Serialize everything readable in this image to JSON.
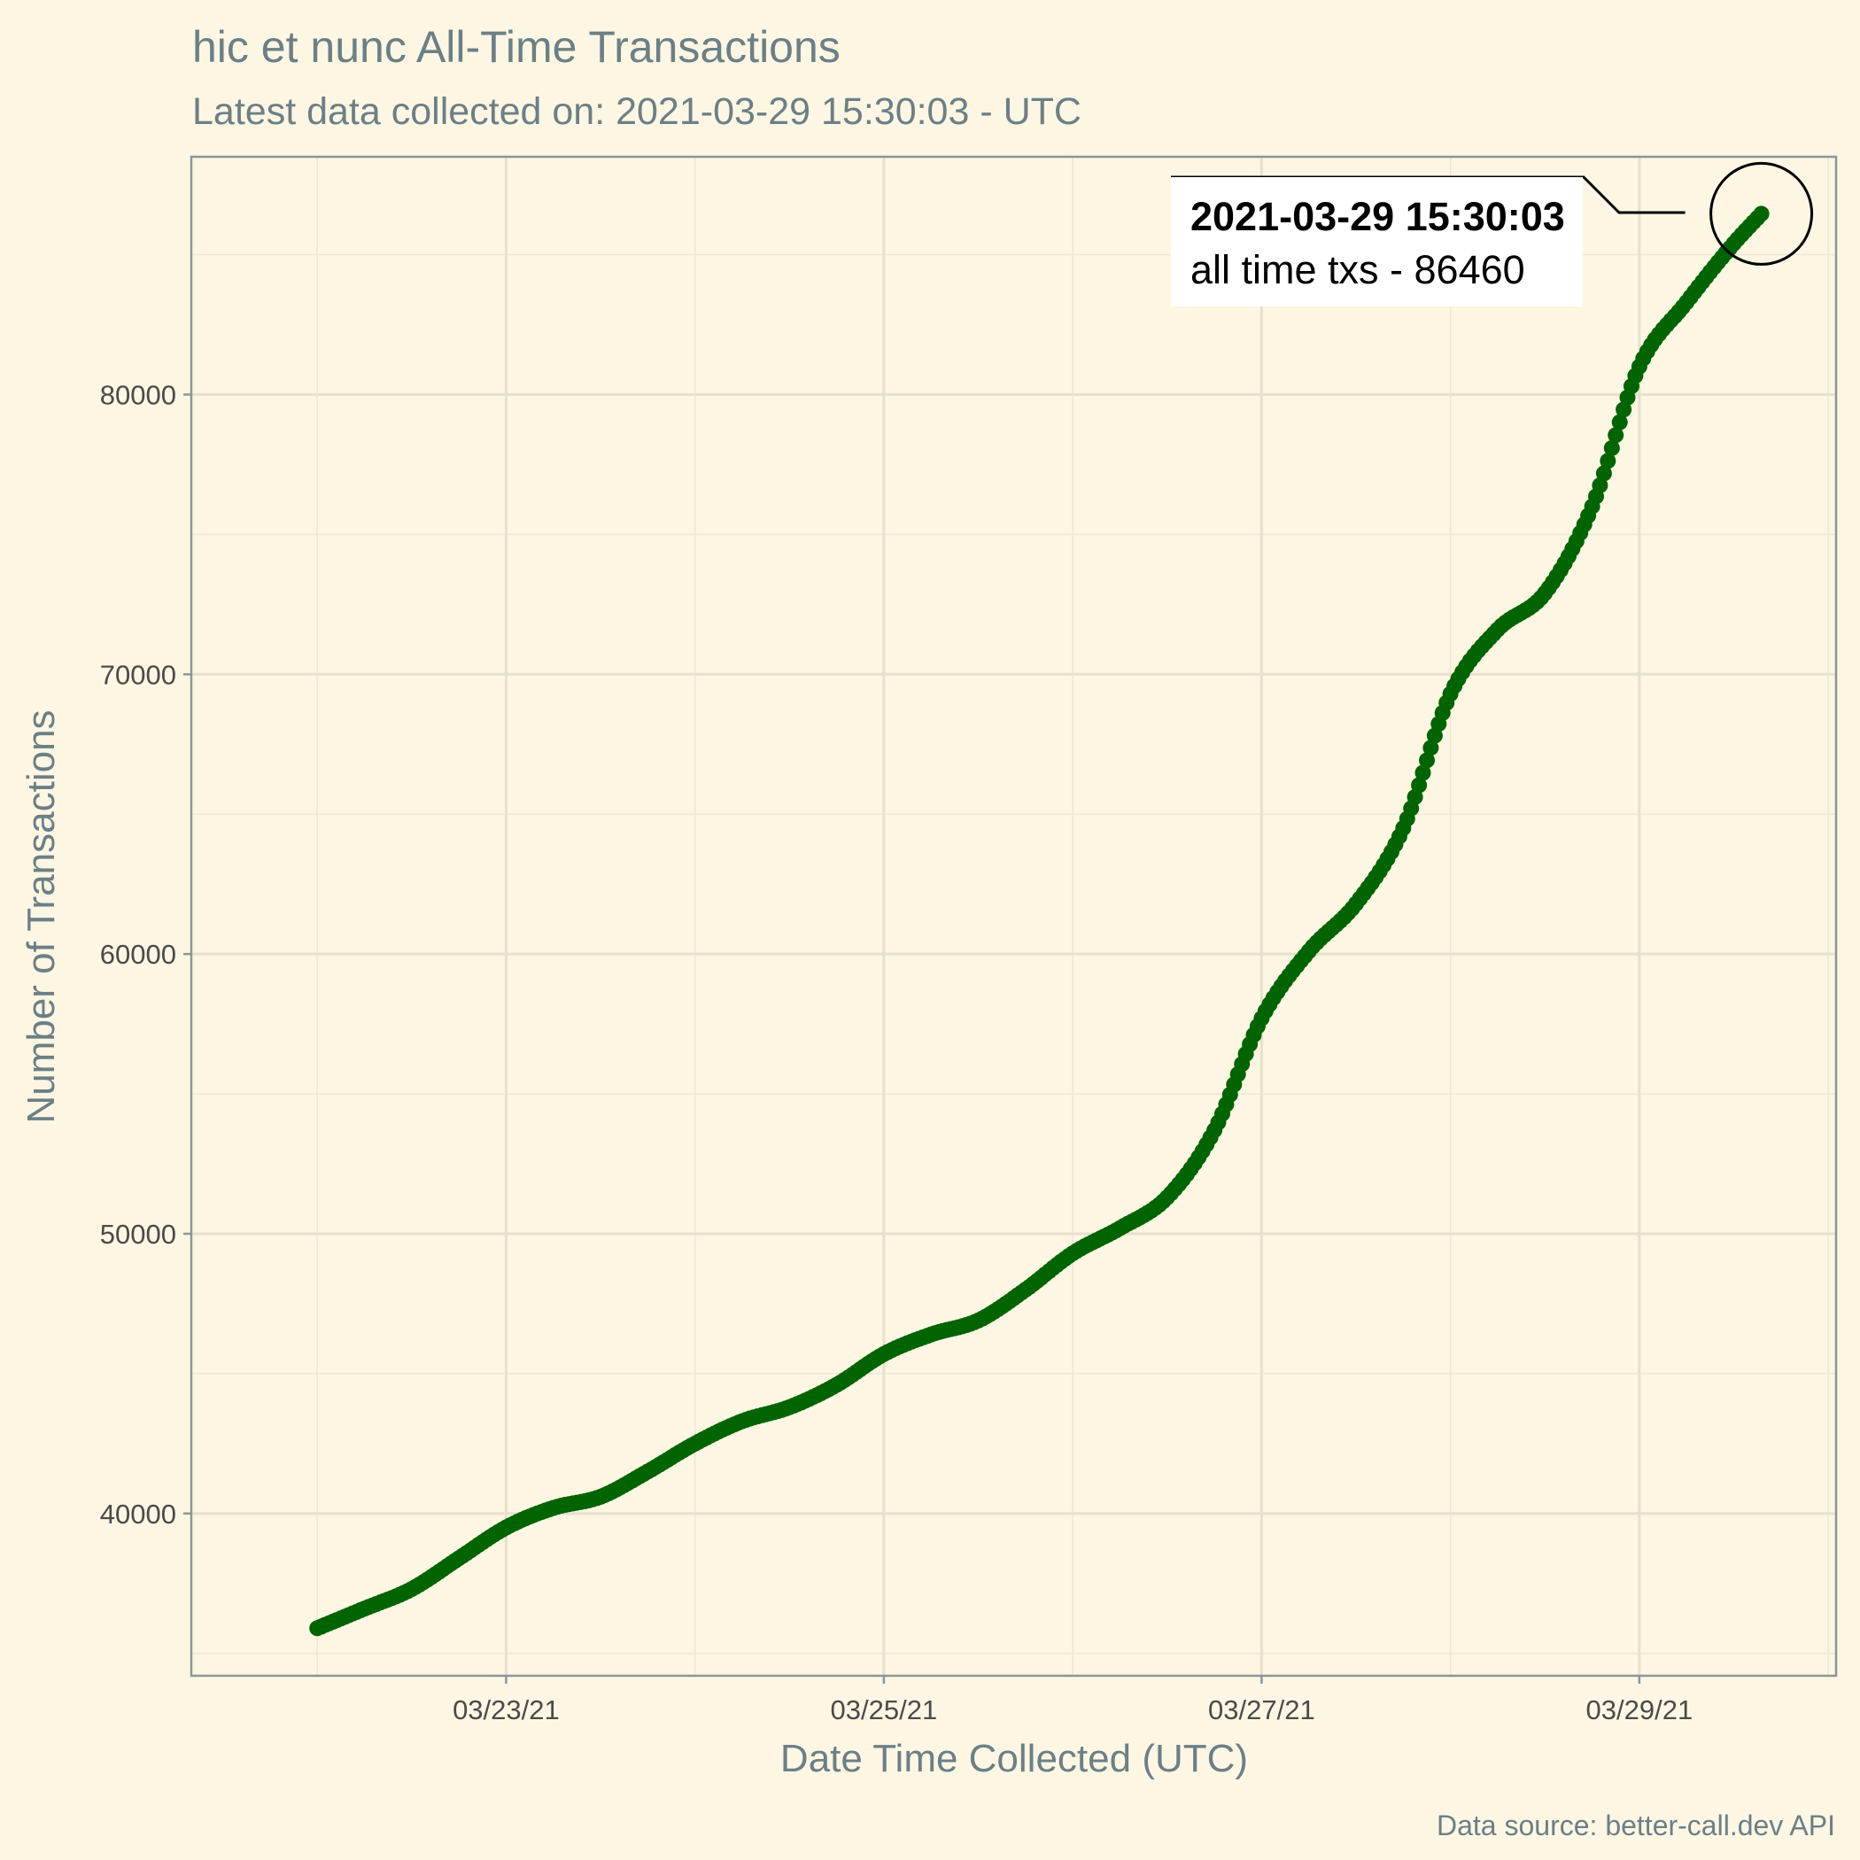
{
  "chart_data": {
    "type": "line",
    "title": "hic et nunc All-Time Transactions",
    "subtitle": "Latest data collected on: 2021-03-29 15:30:03  - UTC",
    "xlabel": "Date Time Collected (UTC)",
    "ylabel": "Number of Transactions",
    "caption": "Data source: better-call.dev API",
    "x_is_datetime": true,
    "xlim": [
      "2021-03-21 08:00",
      "2021-03-30 01:00"
    ],
    "ylim": [
      34200,
      88500
    ],
    "x_ticks": [
      {
        "value": "2021-03-23 00:00",
        "label": "03/23/21"
      },
      {
        "value": "2021-03-25 00:00",
        "label": "03/25/21"
      },
      {
        "value": "2021-03-27 00:00",
        "label": "03/27/21"
      },
      {
        "value": "2021-03-29 00:00",
        "label": "03/29/21"
      }
    ],
    "y_ticks": [
      {
        "value": 40000,
        "label": "40000"
      },
      {
        "value": 50000,
        "label": "50000"
      },
      {
        "value": 60000,
        "label": "60000"
      },
      {
        "value": 70000,
        "label": "70000"
      },
      {
        "value": 80000,
        "label": "80000"
      }
    ],
    "series": [
      {
        "color": "#006400",
        "line_color": "#000000",
        "points": [
          [
            "2021-03-22 00:00",
            35900
          ],
          [
            "2021-03-22 06:00",
            36600
          ],
          [
            "2021-03-22 12:00",
            37300
          ],
          [
            "2021-03-22 18:00",
            38400
          ],
          [
            "2021-03-23 00:00",
            39500
          ],
          [
            "2021-03-23 06:00",
            40200
          ],
          [
            "2021-03-23 12:00",
            40600
          ],
          [
            "2021-03-23 18:00",
            41500
          ],
          [
            "2021-03-24 00:00",
            42500
          ],
          [
            "2021-03-24 06:00",
            43300
          ],
          [
            "2021-03-24 12:00",
            43800
          ],
          [
            "2021-03-24 18:00",
            44600
          ],
          [
            "2021-03-25 00:00",
            45700
          ],
          [
            "2021-03-25 06:00",
            46400
          ],
          [
            "2021-03-25 12:00",
            46900
          ],
          [
            "2021-03-25 18:00",
            48000
          ],
          [
            "2021-03-26 00:00",
            49300
          ],
          [
            "2021-03-26 06:00",
            50200
          ],
          [
            "2021-03-26 12:00",
            51300
          ],
          [
            "2021-03-26 18:00",
            53700
          ],
          [
            "2021-03-27 00:00",
            57700
          ],
          [
            "2021-03-27 06:00",
            60100
          ],
          [
            "2021-03-27 12:00",
            61800
          ],
          [
            "2021-03-27 18:00",
            64500
          ],
          [
            "2021-03-28 00:00",
            69300
          ],
          [
            "2021-03-28 06:00",
            71600
          ],
          [
            "2021-03-28 12:00",
            72900
          ],
          [
            "2021-03-28 18:00",
            76000
          ],
          [
            "2021-03-29 00:00",
            81000
          ],
          [
            "2021-03-29 06:00",
            83300
          ],
          [
            "2021-03-29 12:00",
            85400
          ],
          [
            "2021-03-29 15:30",
            86460
          ]
        ]
      }
    ],
    "annotation": {
      "title": "2021-03-29 15:30:03",
      "text": "all time txs - 86460",
      "x": "2021-03-29 15:30",
      "y": 86460
    },
    "grid": true,
    "legend": "none"
  }
}
